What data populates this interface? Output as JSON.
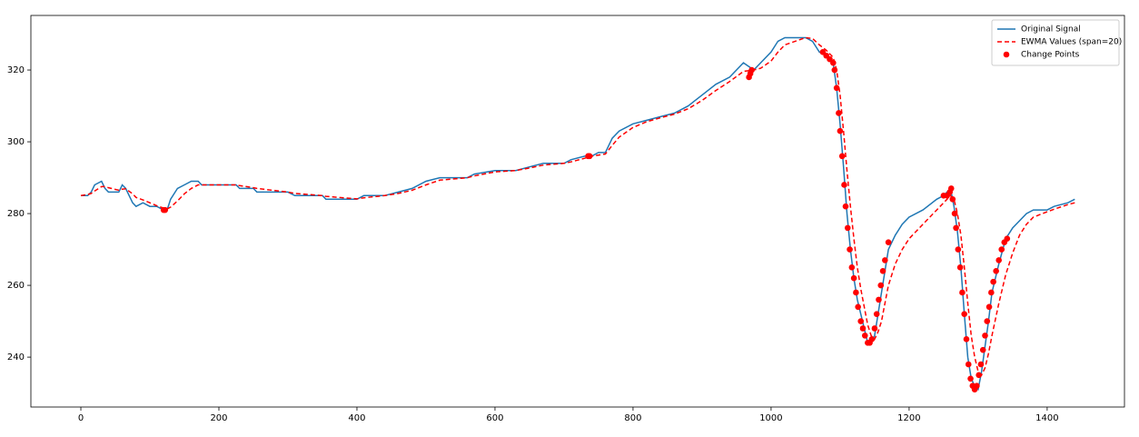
{
  "chart_data": {
    "type": "line",
    "xlim": [
      -72.4,
      1512
    ],
    "ylim": [
      226.1,
      335.2
    ],
    "xticks": [
      0,
      200,
      400,
      600,
      800,
      1000,
      1200,
      1400
    ],
    "yticks": [
      240,
      260,
      280,
      300,
      320
    ],
    "legend": "upper right",
    "series": [
      {
        "name": "Original Signal",
        "type": "line",
        "color": "#1f77b4",
        "linestyle": "solid",
        "x": [
          0,
          10,
          15,
          20,
          30,
          35,
          40,
          55,
          60,
          65,
          75,
          80,
          90,
          100,
          110,
          120,
          125,
          130,
          140,
          150,
          160,
          170,
          175,
          200,
          225,
          230,
          250,
          255,
          300,
          310,
          350,
          355,
          400,
          410,
          440,
          460,
          480,
          500,
          520,
          560,
          570,
          600,
          630,
          650,
          670,
          700,
          710,
          730,
          740,
          750,
          760,
          770,
          780,
          800,
          820,
          840,
          860,
          880,
          900,
          920,
          940,
          950,
          960,
          975,
          985,
          1000,
          1010,
          1020,
          1050,
          1060,
          1070,
          1080,
          1090,
          1095,
          1100,
          1105,
          1110,
          1115,
          1120,
          1125,
          1130,
          1135,
          1140,
          1145,
          1150,
          1155,
          1160,
          1165,
          1170,
          1180,
          1190,
          1200,
          1220,
          1240,
          1250,
          1260,
          1265,
          1270,
          1275,
          1280,
          1285,
          1290,
          1295,
          1300,
          1305,
          1310,
          1315,
          1320,
          1330,
          1340,
          1350,
          1360,
          1370,
          1380,
          1400,
          1410,
          1430,
          1440
        ],
        "values": [
          285,
          285,
          286,
          288,
          289,
          287,
          286,
          286,
          288,
          287,
          283,
          282,
          283,
          282,
          282,
          281,
          281,
          284,
          287,
          288,
          289,
          289,
          288,
          288,
          288,
          287,
          287,
          286,
          286,
          285,
          285,
          284,
          284,
          285,
          285,
          286,
          287,
          289,
          290,
          290,
          291,
          292,
          292,
          293,
          294,
          294,
          295,
          296,
          296,
          297,
          297,
          301,
          303,
          305,
          306,
          307,
          308,
          310,
          313,
          316,
          318,
          320,
          322,
          320,
          322,
          325,
          328,
          329,
          329,
          328,
          325,
          324,
          322,
          315,
          305,
          293,
          280,
          270,
          262,
          256,
          252,
          248,
          244,
          244,
          246,
          252,
          258,
          264,
          270,
          274,
          277,
          279,
          281,
          284,
          285,
          287,
          282,
          275,
          265,
          252,
          240,
          234,
          232,
          231,
          236,
          243,
          250,
          258,
          266,
          273,
          276,
          278,
          280,
          281,
          281,
          282,
          283,
          284
        ]
      },
      {
        "name": "EWMA Values (span=20)",
        "type": "line",
        "color": "#ff0000",
        "linestyle": "dashed",
        "x": [
          0,
          10,
          15,
          20,
          30,
          35,
          40,
          55,
          60,
          65,
          75,
          80,
          90,
          100,
          110,
          120,
          125,
          130,
          140,
          150,
          160,
          170,
          175,
          200,
          225,
          230,
          250,
          255,
          300,
          310,
          350,
          355,
          400,
          410,
          440,
          460,
          480,
          500,
          520,
          560,
          570,
          600,
          630,
          650,
          670,
          700,
          710,
          730,
          740,
          750,
          760,
          770,
          780,
          800,
          820,
          840,
          860,
          880,
          900,
          920,
          940,
          950,
          960,
          975,
          985,
          1000,
          1010,
          1020,
          1050,
          1060,
          1070,
          1080,
          1090,
          1095,
          1100,
          1105,
          1110,
          1115,
          1120,
          1125,
          1130,
          1135,
          1140,
          1145,
          1150,
          1155,
          1160,
          1165,
          1170,
          1180,
          1190,
          1200,
          1220,
          1240,
          1250,
          1260,
          1265,
          1270,
          1275,
          1280,
          1285,
          1290,
          1295,
          1300,
          1305,
          1310,
          1315,
          1320,
          1330,
          1340,
          1350,
          1360,
          1370,
          1380,
          1400,
          1410,
          1430,
          1440
        ],
        "values": [
          285,
          285.3,
          285.6,
          286.3,
          287.5,
          287.5,
          287.2,
          286.5,
          286.8,
          286.9,
          285.5,
          284.5,
          283.8,
          283,
          282.2,
          281.5,
          281.3,
          281.8,
          283.5,
          285.5,
          287,
          288,
          288,
          288,
          288,
          287.8,
          287.2,
          287,
          286,
          285.6,
          285,
          284.8,
          284.1,
          284.4,
          285,
          285.6,
          286.5,
          288,
          289.3,
          290,
          290.5,
          291.6,
          292,
          292.7,
          293.5,
          294,
          294.4,
          295.4,
          296,
          296.3,
          296.6,
          299,
          301.3,
          304,
          305.6,
          306.7,
          307.7,
          309.2,
          311.5,
          314.3,
          316.8,
          318.2,
          319.6,
          320,
          320.5,
          322.5,
          325,
          327,
          329,
          328.8,
          327,
          325.5,
          323.5,
          320,
          313,
          303,
          292,
          282,
          273,
          265,
          259,
          254,
          249,
          246,
          245,
          247,
          250,
          255,
          260,
          266,
          270,
          273,
          277,
          281,
          283,
          285,
          284,
          280,
          274,
          265,
          255,
          246,
          240,
          236,
          235,
          237,
          241,
          246,
          255,
          263,
          269,
          274,
          277,
          279,
          280.5,
          281.2,
          282.5,
          283
        ]
      },
      {
        "name": "Change Points",
        "type": "scatter",
        "color": "#ff0000",
        "x": [
          120,
          122,
          735,
          737,
          968,
          970,
          972,
          1075,
          1080,
          1085,
          1090,
          1092,
          1095,
          1098,
          1100,
          1103,
          1106,
          1108,
          1111,
          1114,
          1117,
          1120,
          1123,
          1126,
          1130,
          1133,
          1136,
          1140,
          1143,
          1146,
          1150,
          1153,
          1156,
          1159,
          1162,
          1165,
          1170,
          1250,
          1255,
          1259,
          1261,
          1263,
          1266,
          1268,
          1271,
          1274,
          1277,
          1280,
          1283,
          1286,
          1289,
          1292,
          1295,
          1298,
          1301,
          1304,
          1307,
          1310,
          1313,
          1316,
          1319,
          1322,
          1326,
          1330,
          1334,
          1338,
          1342
        ],
        "values": [
          281,
          281,
          296,
          296,
          318,
          319,
          320,
          325,
          324,
          323,
          322,
          320,
          315,
          308,
          303,
          296,
          288,
          282,
          276,
          270,
          265,
          262,
          258,
          254,
          250,
          248,
          246,
          244,
          244,
          245,
          248,
          252,
          256,
          260,
          264,
          267,
          272,
          285,
          285,
          286,
          287,
          284,
          280,
          276,
          270,
          265,
          258,
          252,
          245,
          238,
          234,
          232,
          231,
          232,
          235,
          238,
          242,
          246,
          250,
          254,
          258,
          261,
          264,
          267,
          270,
          272,
          273
        ]
      }
    ]
  }
}
